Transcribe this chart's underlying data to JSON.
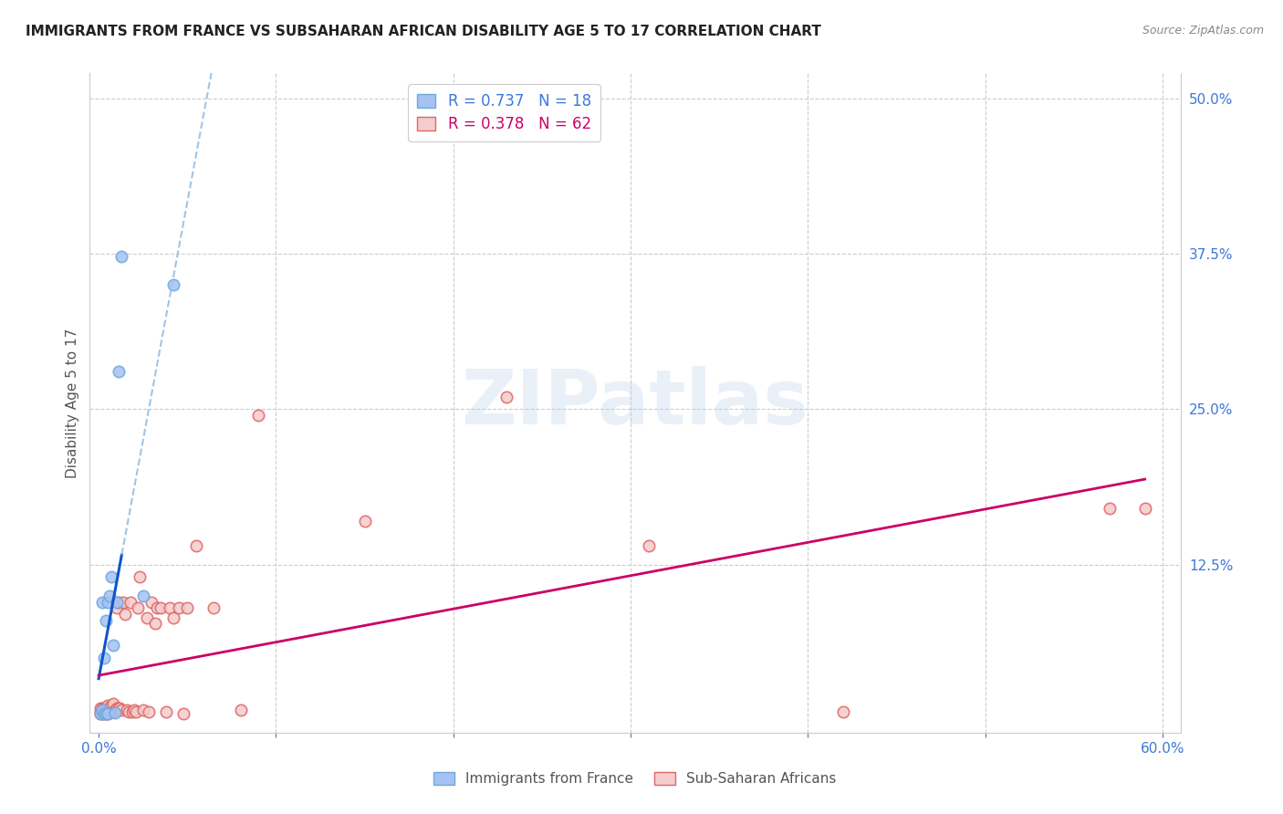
{
  "title": "IMMIGRANTS FROM FRANCE VS SUBSAHARAN AFRICAN DISABILITY AGE 5 TO 17 CORRELATION CHART",
  "source": "Source: ZipAtlas.com",
  "ylabel": "Disability Age 5 to 17",
  "xlim": [
    -0.005,
    0.61
  ],
  "ylim": [
    -0.01,
    0.52
  ],
  "xticks": [
    0.0,
    0.1,
    0.2,
    0.3,
    0.4,
    0.5,
    0.6
  ],
  "xticklabels": [
    "0.0%",
    "",
    "",
    "",
    "",
    "",
    "60.0%"
  ],
  "yticks_right": [
    0.125,
    0.25,
    0.375,
    0.5
  ],
  "ytick_right_labels": [
    "12.5%",
    "25.0%",
    "37.5%",
    "50.0%"
  ],
  "blue_color": "#a4c2f4",
  "blue_edge": "#6fa8dc",
  "pink_color": "#f4cccc",
  "pink_edge": "#e06666",
  "regression_blue_color": "#1155cc",
  "regression_blue_dash_color": "#9fc5e8",
  "regression_pink_color": "#cc0066",
  "legend_R1": "R = 0.737",
  "legend_N1": "N = 18",
  "legend_R2": "R = 0.378",
  "legend_N2": "N = 62",
  "legend_label1": "Immigrants from France",
  "legend_label2": "Sub-Saharan Africans",
  "grid_color": "#cccccc",
  "watermark": "ZIPatlas",
  "tick_color": "#3c78d8",
  "blue_x": [
    0.001,
    0.002,
    0.002,
    0.003,
    0.003,
    0.004,
    0.004,
    0.005,
    0.005,
    0.006,
    0.007,
    0.008,
    0.009,
    0.01,
    0.011,
    0.013,
    0.025,
    0.042
  ],
  "blue_y": [
    0.005,
    0.008,
    0.095,
    0.05,
    0.005,
    0.08,
    0.005,
    0.005,
    0.095,
    0.1,
    0.115,
    0.06,
    0.006,
    0.095,
    0.28,
    0.373,
    0.1,
    0.35
  ],
  "pink_x": [
    0.001,
    0.001,
    0.001,
    0.002,
    0.002,
    0.002,
    0.003,
    0.003,
    0.003,
    0.004,
    0.004,
    0.004,
    0.005,
    0.005,
    0.005,
    0.005,
    0.006,
    0.006,
    0.007,
    0.007,
    0.008,
    0.008,
    0.009,
    0.01,
    0.01,
    0.011,
    0.011,
    0.012,
    0.013,
    0.014,
    0.015,
    0.016,
    0.017,
    0.018,
    0.019,
    0.02,
    0.021,
    0.022,
    0.023,
    0.025,
    0.027,
    0.028,
    0.03,
    0.032,
    0.033,
    0.035,
    0.038,
    0.04,
    0.042,
    0.045,
    0.048,
    0.05,
    0.055,
    0.065,
    0.08,
    0.09,
    0.15,
    0.23,
    0.31,
    0.42,
    0.57,
    0.59
  ],
  "pink_y": [
    0.005,
    0.007,
    0.01,
    0.005,
    0.008,
    0.01,
    0.005,
    0.008,
    0.01,
    0.006,
    0.008,
    0.01,
    0.005,
    0.008,
    0.01,
    0.012,
    0.007,
    0.01,
    0.008,
    0.012,
    0.007,
    0.013,
    0.008,
    0.09,
    0.01,
    0.01,
    0.095,
    0.01,
    0.008,
    0.095,
    0.085,
    0.008,
    0.007,
    0.095,
    0.007,
    0.008,
    0.007,
    0.09,
    0.115,
    0.008,
    0.082,
    0.007,
    0.095,
    0.078,
    0.09,
    0.09,
    0.007,
    0.09,
    0.082,
    0.09,
    0.005,
    0.09,
    0.14,
    0.09,
    0.008,
    0.245,
    0.16,
    0.26,
    0.14,
    0.007,
    0.17,
    0.17
  ]
}
